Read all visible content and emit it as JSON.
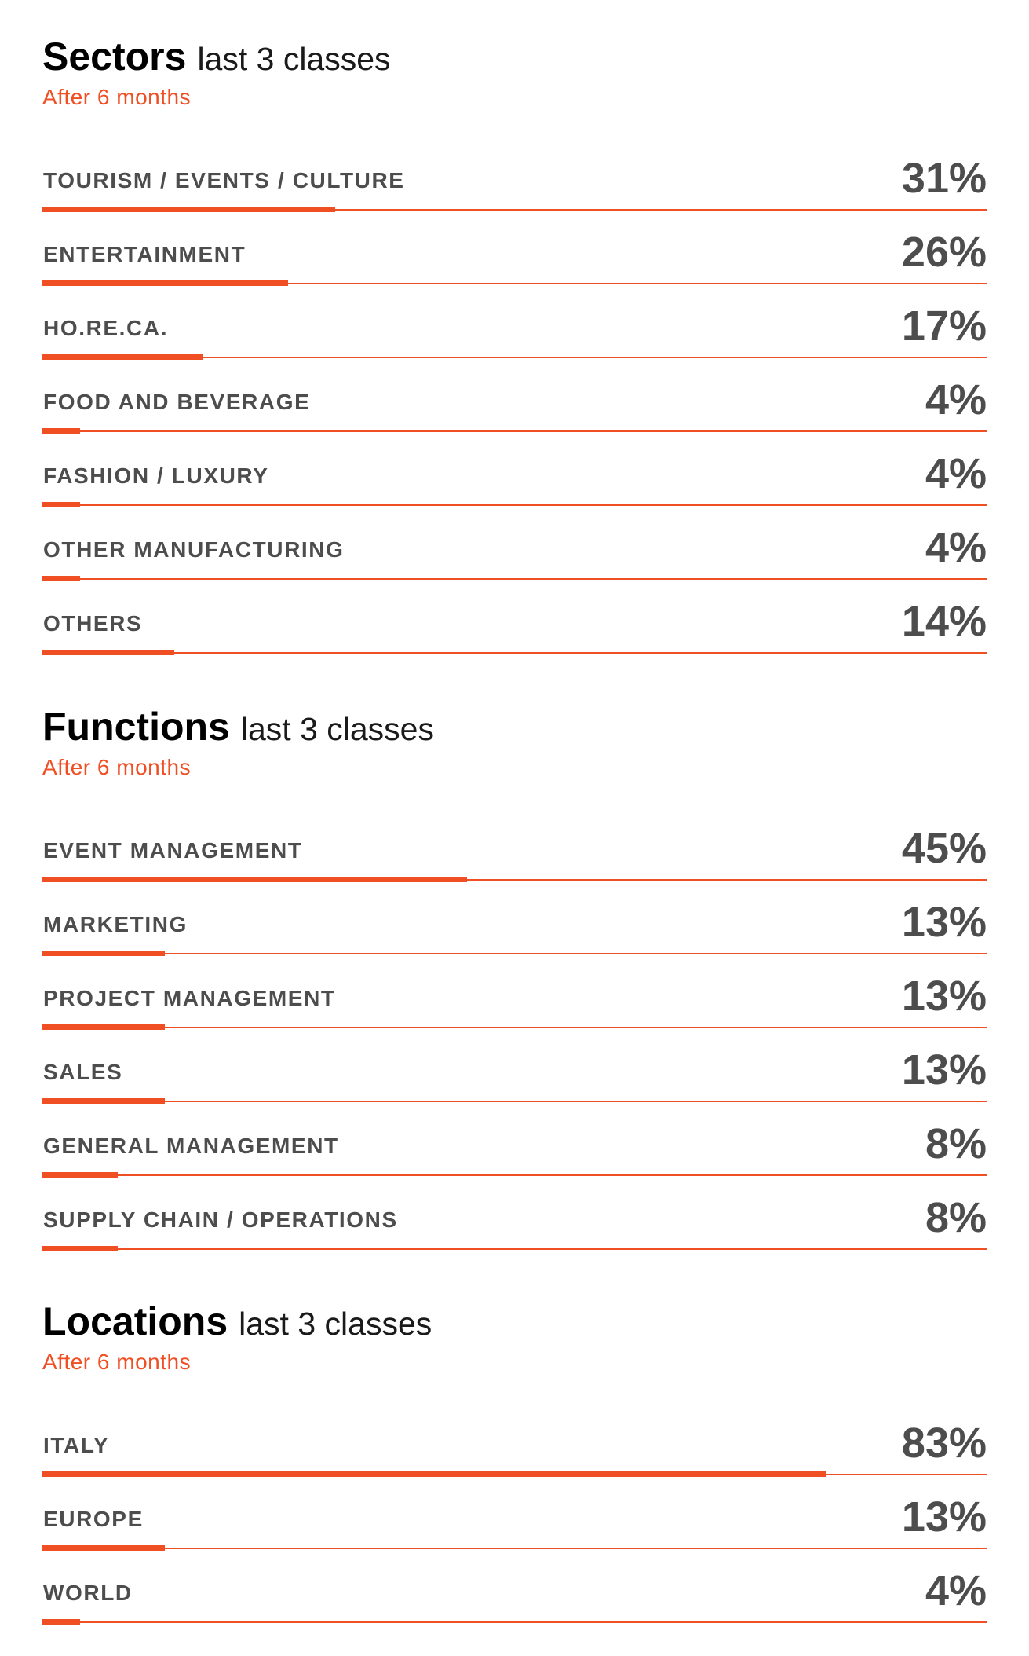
{
  "colors": {
    "accent": "#f04e23",
    "text_dark": "#4d4d4d",
    "title": "#000000"
  },
  "chart_data": [
    {
      "type": "bar",
      "title": "Sectors",
      "title_suffix": "last 3 classes",
      "subtitle": "After 6 months",
      "unit": "%",
      "xlim": [
        0,
        100
      ],
      "categories": [
        "TOURISM / EVENTS / CULTURE",
        "ENTERTAINMENT",
        "HO.RE.CA.",
        "FOOD AND BEVERAGE",
        "FASHION / LUXURY",
        "OTHER MANUFACTURING",
        "OTHERS"
      ],
      "values": [
        31,
        26,
        17,
        4,
        4,
        4,
        14
      ],
      "labels": [
        "31%",
        "26%",
        "17%",
        "4%",
        "4%",
        "4%",
        "14%"
      ]
    },
    {
      "type": "bar",
      "title": "Functions",
      "title_suffix": "last 3 classes",
      "subtitle": "After 6 months",
      "unit": "%",
      "xlim": [
        0,
        100
      ],
      "categories": [
        "EVENT MANAGEMENT",
        "MARKETING",
        "PROJECT MANAGEMENT",
        "SALES",
        "GENERAL MANAGEMENT",
        "SUPPLY CHAIN / OPERATIONS"
      ],
      "values": [
        45,
        13,
        13,
        13,
        8,
        8
      ],
      "labels": [
        "45%",
        "13%",
        "13%",
        "13%",
        "8%",
        "8%"
      ]
    },
    {
      "type": "bar",
      "title": "Locations",
      "title_suffix": "last 3 classes",
      "subtitle": "After 6 months",
      "unit": "%",
      "xlim": [
        0,
        100
      ],
      "categories": [
        "ITALY",
        "EUROPE",
        "WORLD"
      ],
      "values": [
        83,
        13,
        4
      ],
      "labels": [
        "83%",
        "13%",
        "4%"
      ]
    }
  ]
}
